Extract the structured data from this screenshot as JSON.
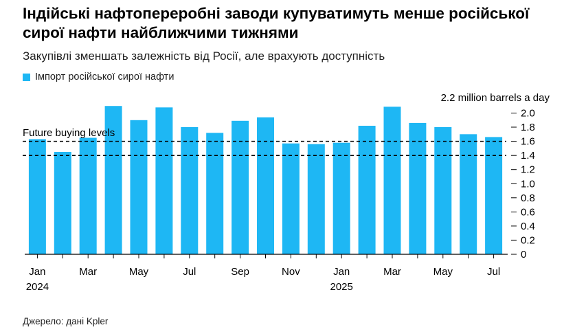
{
  "title": "Індійські нафтопереробні заводи купуватимуть менше російської сирої нафти найближчими тижнями",
  "subtitle": "Закупівлі зменшать залежність від Росії, але врахують доступність",
  "source": "Джерело: дані Kpler",
  "colors": {
    "bar": "#1eb7f4",
    "axis": "#000000"
  },
  "chart_data": {
    "type": "bar",
    "unit_label": "2.2 million barrels a day",
    "ylim": [
      0,
      2.2
    ],
    "y_ticks": [
      "0",
      "0.2",
      "0.4",
      "0.6",
      "0.8",
      "1.0",
      "1.2",
      "1.4",
      "1.6",
      "1.8",
      "2.0"
    ],
    "y_tick_values": [
      0,
      0.2,
      0.4,
      0.6,
      0.8,
      1.0,
      1.2,
      1.4,
      1.6,
      1.8,
      2.0
    ],
    "categories": [
      "2024-01",
      "2024-02",
      "2024-03",
      "2024-04",
      "2024-05",
      "2024-06",
      "2024-07",
      "2024-08",
      "2024-09",
      "2024-10",
      "2024-11",
      "2024-12",
      "2025-01",
      "2025-02",
      "2025-03",
      "2025-04",
      "2025-05",
      "2025-06",
      "2025-07"
    ],
    "series": [
      {
        "name": "Імпорт російської сирої нафти",
        "values": [
          1.63,
          1.45,
          1.65,
          2.1,
          1.9,
          2.08,
          1.8,
          1.72,
          1.89,
          1.94,
          1.57,
          1.56,
          1.58,
          1.82,
          2.09,
          1.86,
          1.8,
          1.7,
          1.66
        ]
      }
    ],
    "x_tick_labels": [
      {
        "index": 0,
        "month": "Jan",
        "year": "2024"
      },
      {
        "index": 2,
        "month": "Mar",
        "year": ""
      },
      {
        "index": 4,
        "month": "May",
        "year": ""
      },
      {
        "index": 6,
        "month": "Jul",
        "year": ""
      },
      {
        "index": 8,
        "month": "Sep",
        "year": ""
      },
      {
        "index": 10,
        "month": "Nov",
        "year": ""
      },
      {
        "index": 12,
        "month": "Jan",
        "year": "2025"
      },
      {
        "index": 14,
        "month": "Mar",
        "year": ""
      },
      {
        "index": 16,
        "month": "May",
        "year": ""
      },
      {
        "index": 18,
        "month": "Jul",
        "year": ""
      }
    ],
    "reference_lines": [
      {
        "value": 1.6,
        "style": "dashed"
      },
      {
        "value": 1.4,
        "style": "dashed"
      }
    ],
    "annotation": "Future buying levels"
  }
}
